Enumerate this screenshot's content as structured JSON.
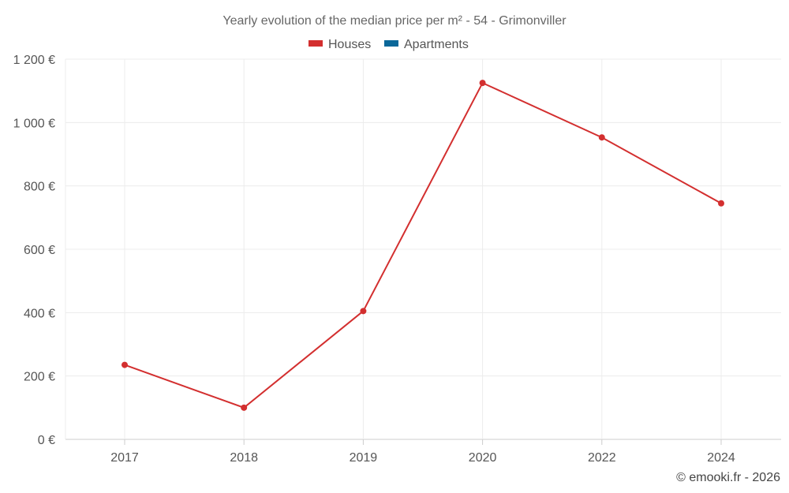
{
  "chart_data": {
    "type": "line",
    "title": "Yearly evolution of the median price per m² - 54 - Grimonviller",
    "categories": [
      "2017",
      "2018",
      "2019",
      "2020",
      "2022",
      "2024"
    ],
    "series": [
      {
        "name": "Houses",
        "color": "#d32f2f",
        "values": [
          235,
          100,
          405,
          1125,
          953,
          745
        ]
      },
      {
        "name": "Apartments",
        "color": "#0a6799",
        "values": [
          null,
          null,
          null,
          null,
          null,
          null
        ]
      }
    ],
    "ylim": [
      0,
      1200
    ],
    "yticks": [
      0,
      200,
      400,
      600,
      800,
      1000,
      1200
    ],
    "ytick_labels": [
      "0 €",
      "200 €",
      "400 €",
      "600 €",
      "800 €",
      "1 000 €",
      "1 200 €"
    ],
    "xlabel": "",
    "ylabel": "",
    "grid": true,
    "legend_position": "top-center",
    "credit": "© emooki.fr - 2026"
  }
}
